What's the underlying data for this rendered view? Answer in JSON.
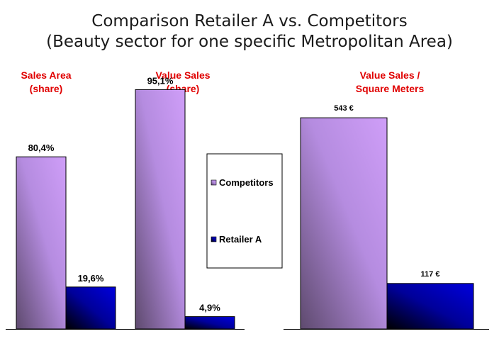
{
  "title_line1": "Comparison Retailer A vs. Competitors",
  "title_line2": "(Beauty sector for one specific Metropolitan Area)",
  "legend": [
    {
      "label": "Competitors",
      "color": "#c99cf5"
    },
    {
      "label": "Retailer A",
      "color": "#0000cc"
    }
  ],
  "chart_data": [
    {
      "type": "bar",
      "title_line1": "Sales Area",
      "title_line2": "(share)",
      "unit": "%",
      "series": [
        {
          "name": "Competitors",
          "value": 80.4,
          "label": "80,4%"
        },
        {
          "name": "Retailer A",
          "value": 19.6,
          "label": "19,6%"
        }
      ]
    },
    {
      "type": "bar",
      "title_line1": "Value Sales",
      "title_line2": "(share)",
      "unit": "%",
      "series": [
        {
          "name": "Competitors",
          "value": 95.1,
          "label": "95,1%"
        },
        {
          "name": "Retailer A",
          "value": 4.9,
          "label": "4,9%"
        }
      ]
    },
    {
      "type": "bar",
      "title_line1": "Value Sales /",
      "title_line2": "Square Meters",
      "unit": "€",
      "series": [
        {
          "name": "Competitors",
          "value": 543,
          "label": "543 €"
        },
        {
          "name": "Retailer A",
          "value": 117,
          "label": "117 €"
        }
      ]
    }
  ]
}
